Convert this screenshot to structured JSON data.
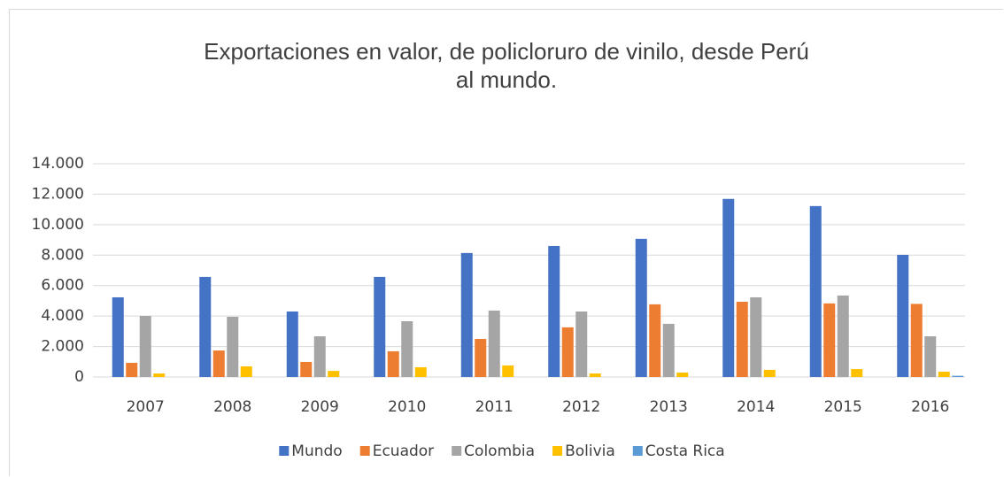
{
  "chart_data": {
    "type": "bar",
    "title": "Exportaciones en valor, de policloruro de vinilo, desde Perú al mundo.",
    "categories": [
      "2007",
      "2008",
      "2009",
      "2010",
      "2011",
      "2012",
      "2013",
      "2014",
      "2015",
      "2016"
    ],
    "series": [
      {
        "name": "Mundo",
        "color": "#4472c4",
        "values": [
          5230,
          6570,
          4300,
          6570,
          8140,
          8600,
          9070,
          11690,
          11220,
          8020
        ]
      },
      {
        "name": "Ecuador",
        "color": "#ed7d31",
        "values": [
          930,
          1740,
          990,
          1690,
          2500,
          3260,
          4770,
          4940,
          4830,
          4800
        ]
      },
      {
        "name": "Colombia",
        "color": "#a5a5a5",
        "values": [
          4010,
          3950,
          2670,
          3660,
          4360,
          4300,
          3490,
          5230,
          5350,
          2670
        ]
      },
      {
        "name": "Bolivia",
        "color": "#ffc000",
        "values": [
          230,
          700,
          400,
          640,
          760,
          230,
          290,
          470,
          520,
          350
        ]
      },
      {
        "name": "Costa Rica",
        "color": "#5b9bd5",
        "values": [
          0,
          0,
          0,
          0,
          0,
          0,
          0,
          0,
          0,
          80
        ]
      }
    ],
    "ylim": [
      0,
      14000
    ],
    "yticks": [
      0,
      {
        "value": 2000,
        "label": "2.000"
      },
      {
        "value": 4000,
        "label": "4.000"
      },
      {
        "value": 6000,
        "label": "6.000"
      },
      {
        "value": 8000,
        "label": "8.000"
      },
      {
        "value": 10000,
        "label": "10.000"
      },
      {
        "value": 12000,
        "label": "12.000"
      },
      {
        "value": 14000,
        "label": "14.000"
      }
    ],
    "grid": true,
    "legend": "bottom"
  }
}
